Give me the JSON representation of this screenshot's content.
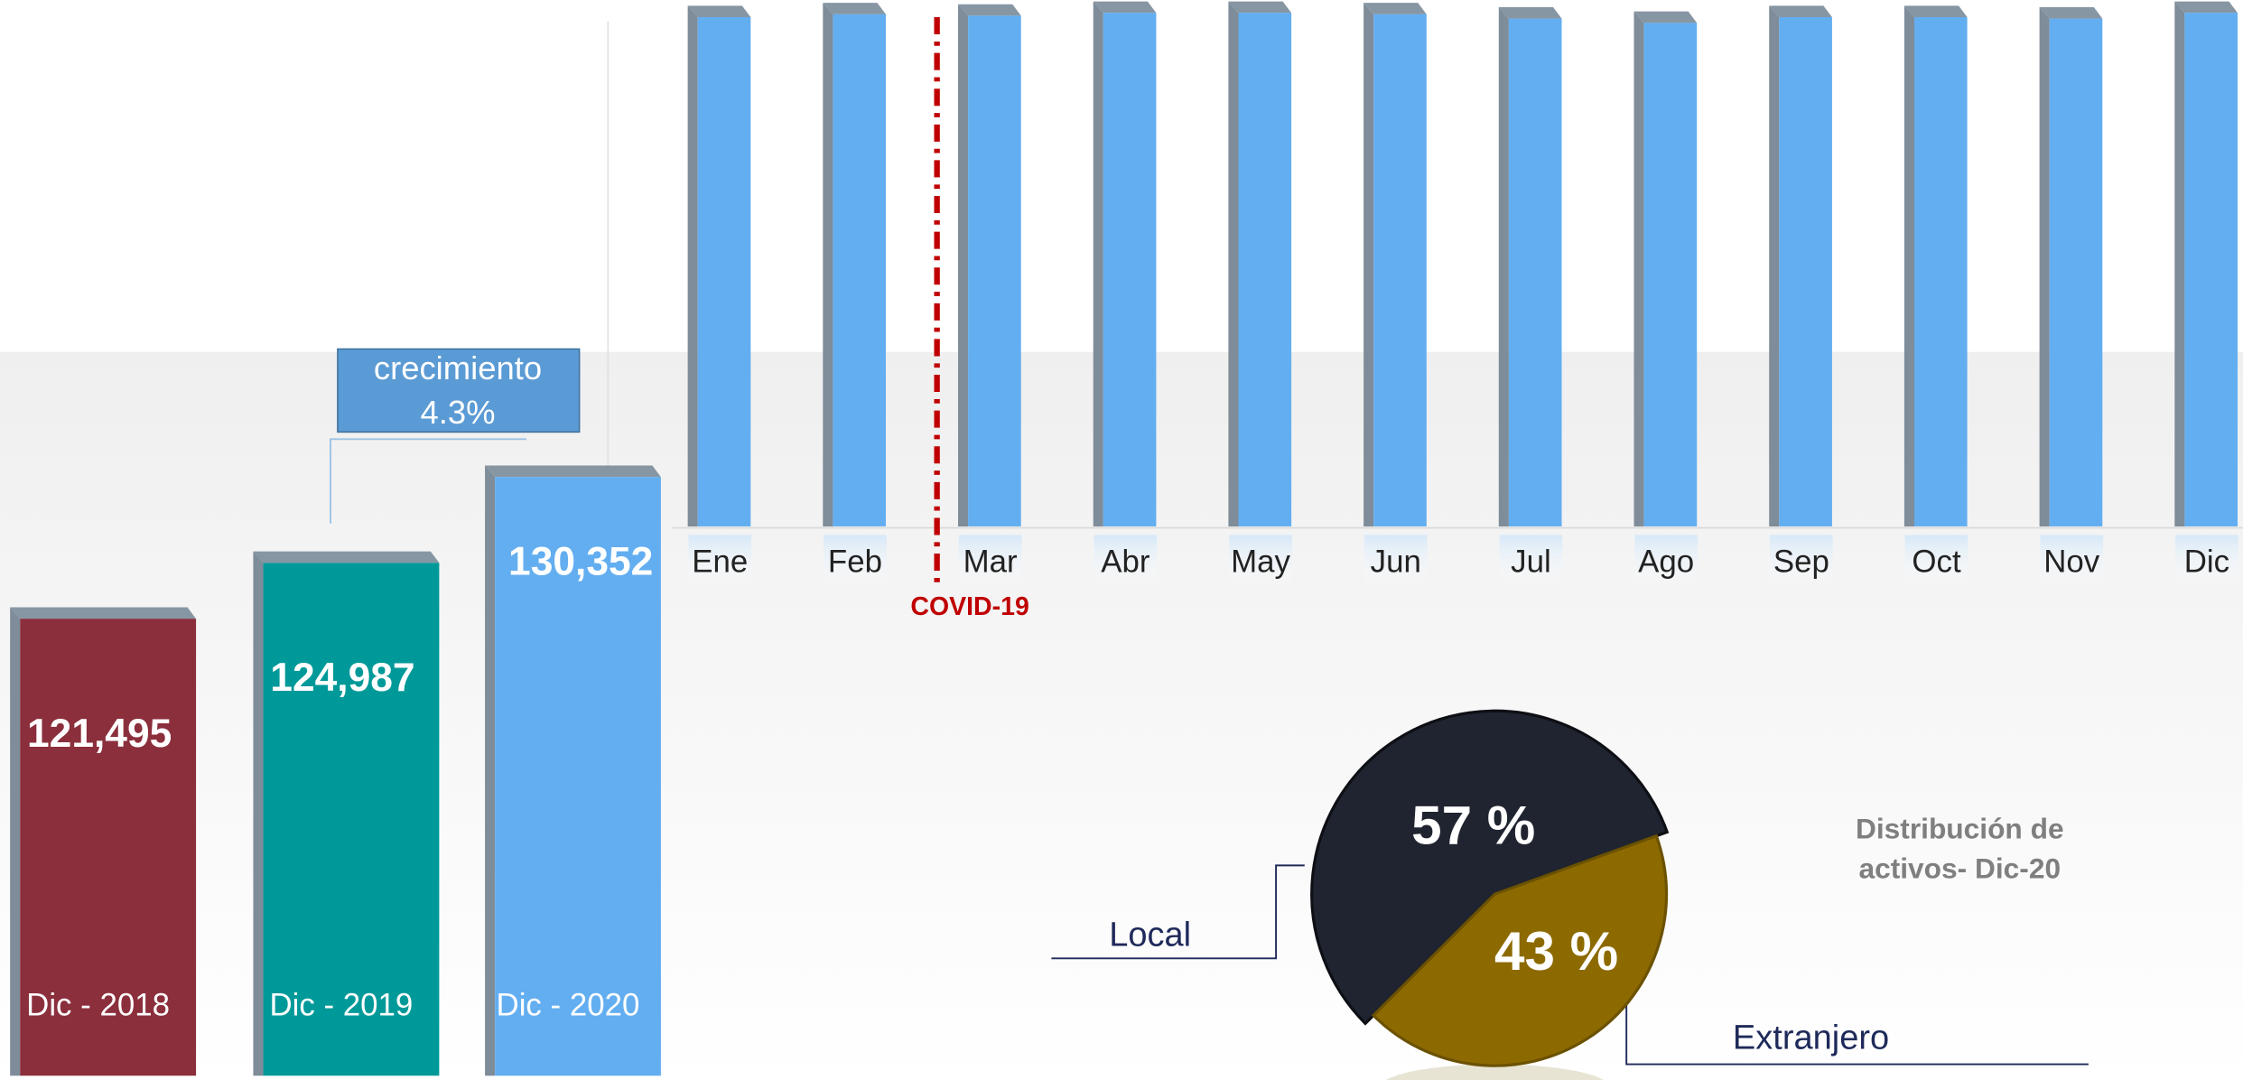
{
  "chart_data": [
    {
      "type": "bar",
      "categories": [
        "Dic - 2018",
        "Dic - 2019",
        "Dic - 2020"
      ],
      "values": [
        121495,
        124987,
        130352
      ],
      "value_labels": [
        "121,495",
        "124,987",
        "130,352"
      ],
      "colors": [
        "#8b2f3c",
        "#009999",
        "#63aef0"
      ],
      "ylim": [
        92500,
        132000
      ],
      "annotation": {
        "text": "crecimiento",
        "value": 4.3,
        "label": "4.3%"
      }
    },
    {
      "type": "bar",
      "categories": [
        "Ene",
        "Feb",
        "Mar",
        "Abr",
        "May",
        "Jun",
        "Jul",
        "Ago",
        "Sep",
        "Oct",
        "Nov",
        "Dic"
      ],
      "values": [
        129263,
        129989,
        129626,
        130352,
        130352,
        129989,
        128900,
        127811,
        129263,
        129263,
        128900,
        130352
      ],
      "color": "#63aef0",
      "ylim": [
        0,
        131800
      ],
      "annotation": "COVID-19"
    },
    {
      "type": "pie",
      "title": "Distribución de activos- Dic-20",
      "categories": [
        "Local",
        "Extranjero"
      ],
      "values": [
        57,
        43
      ],
      "value_labels": [
        "57 %",
        "43 %"
      ],
      "colors": [
        "#1f2430",
        "#8c6a00"
      ]
    }
  ]
}
